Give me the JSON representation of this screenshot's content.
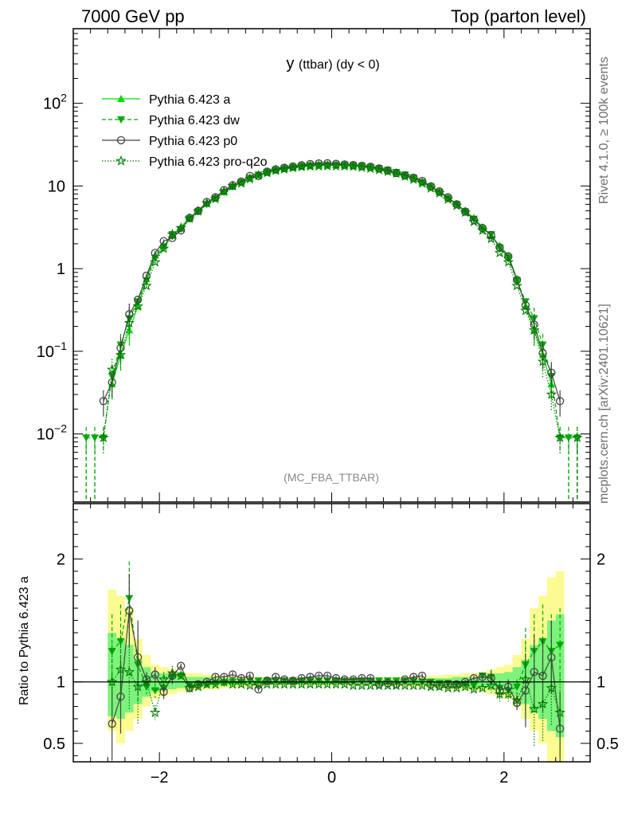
{
  "header": {
    "left": "7000 GeV pp",
    "right": "Top (parton level)"
  },
  "side": {
    "rivet": "Rivet 4.1.0, ≥ 100k events",
    "mcplots": "mcplots.cern.ch [arXiv:2401.10621]"
  },
  "colors": {
    "a": "#00e000",
    "dw": "#00aa00",
    "p0": "#444444",
    "pro": "#007a00",
    "band_yellow": "#fbfb91",
    "band_green": "#7df27d",
    "muted_text": "#888888"
  },
  "chart_data": [
    {
      "id": "main",
      "type": "line",
      "yscale": "log",
      "title": "y",
      "title_sub": "(ttbar) (dy < 0)",
      "watermark": "(MC_FBA_TTBAR)",
      "xlim": [
        -3,
        3
      ],
      "ylim": [
        0.0015,
        800
      ],
      "x_ticks": [
        -2,
        0,
        2
      ],
      "y_ticks": [
        {
          "value": 0.01,
          "base": "10",
          "exp": "−2"
        },
        {
          "value": 0.1,
          "base": "10",
          "exp": "−1"
        },
        {
          "value": 1,
          "label": "1"
        },
        {
          "value": 10,
          "label": "10"
        },
        {
          "value": 100,
          "base": "10",
          "exp": "2"
        }
      ],
      "x": [
        -2.85,
        -2.75,
        -2.65,
        -2.55,
        -2.45,
        -2.35,
        -2.25,
        -2.15,
        -2.05,
        -1.95,
        -1.85,
        -1.75,
        -1.65,
        -1.55,
        -1.45,
        -1.35,
        -1.25,
        -1.15,
        -1.05,
        -0.95,
        -0.85,
        -0.75,
        -0.65,
        -0.55,
        -0.45,
        -0.35,
        -0.25,
        -0.15,
        -0.05,
        0.05,
        0.15,
        0.25,
        0.35,
        0.45,
        0.55,
        0.65,
        0.75,
        0.85,
        0.95,
        1.05,
        1.15,
        1.25,
        1.35,
        1.45,
        1.55,
        1.65,
        1.75,
        1.85,
        1.95,
        2.05,
        2.15,
        2.25,
        2.35,
        2.45,
        2.55,
        2.65,
        2.75,
        2.85
      ],
      "series": [
        {
          "name": "Pythia 6.423 a",
          "key": "a",
          "style": "solid",
          "marker": "triangle-up",
          "values": [
            null,
            null,
            null,
            0.04,
            0.09,
            0.18,
            0.35,
            0.75,
            1.45,
            1.9,
            2.5,
            3.2,
            4.1,
            5.0,
            6.1,
            7.2,
            8.5,
            9.8,
            11.1,
            12.4,
            13.6,
            14.6,
            15.5,
            16.2,
            16.8,
            17.3,
            17.6,
            17.8,
            17.9,
            17.9,
            17.8,
            17.6,
            17.3,
            16.8,
            16.2,
            15.5,
            14.6,
            13.6,
            12.4,
            11.1,
            9.8,
            8.5,
            7.2,
            6.1,
            5.0,
            4.1,
            3.2,
            2.5,
            1.9,
            1.45,
            0.75,
            0.35,
            0.18,
            0.09,
            0.04,
            null,
            null,
            null
          ]
        },
        {
          "name": "Pythia 6.423 dw",
          "key": "dw",
          "style": "dashed",
          "marker": "triangle-down",
          "values": [
            0.009,
            0.009,
            0.009,
            0.05,
            0.12,
            0.25,
            0.4,
            0.72,
            1.35,
            1.8,
            2.6,
            3.0,
            4.0,
            4.9,
            6.0,
            7.1,
            8.4,
            9.8,
            11.1,
            12.5,
            13.7,
            14.7,
            15.6,
            16.3,
            16.9,
            17.4,
            17.7,
            17.9,
            18.0,
            18.0,
            17.9,
            17.7,
            17.4,
            16.9,
            16.3,
            15.6,
            14.7,
            13.7,
            12.5,
            11.1,
            9.8,
            8.4,
            7.1,
            6.0,
            4.9,
            4.0,
            3.0,
            2.6,
            1.8,
            1.35,
            0.72,
            0.4,
            0.25,
            0.12,
            0.05,
            0.009,
            0.009,
            0.009
          ]
        },
        {
          "name": "Pythia 6.423 p0",
          "key": "p0",
          "style": "solid",
          "marker": "circle-open",
          "values": [
            null,
            null,
            0.025,
            0.042,
            0.11,
            0.28,
            0.42,
            0.82,
            1.55,
            2.15,
            2.35,
            2.9,
            4.1,
            5.0,
            6.4,
            7.3,
            8.9,
            10.2,
            11.3,
            13.2,
            13.2,
            14.9,
            15.9,
            16.6,
            17.2,
            17.8,
            18.4,
            18.7,
            18.8,
            18.5,
            18.2,
            17.9,
            17.5,
            17.1,
            16.3,
            15.4,
            14.3,
            13.4,
            12.6,
            11.5,
            9.9,
            8.6,
            7.3,
            6.0,
            4.9,
            3.9,
            3.1,
            2.55,
            1.8,
            1.4,
            0.73,
            0.36,
            0.21,
            0.095,
            0.055,
            0.025,
            null,
            null
          ]
        },
        {
          "name": "Pythia 6.423 pro-q2o",
          "key": "pro",
          "style": "dotted",
          "marker": "star-open",
          "values": [
            null,
            null,
            0.009,
            0.06,
            0.09,
            0.22,
            0.35,
            0.62,
            1.2,
            1.75,
            2.6,
            3.1,
            4.05,
            4.95,
            6.2,
            7.0,
            8.6,
            10.0,
            10.8,
            12.2,
            13.4,
            14.4,
            15.4,
            16.0,
            16.6,
            17.0,
            17.3,
            17.4,
            17.5,
            17.4,
            17.4,
            17.2,
            16.8,
            16.3,
            15.7,
            15.0,
            14.2,
            13.1,
            12.0,
            10.8,
            9.4,
            8.2,
            6.9,
            5.8,
            4.8,
            3.7,
            2.9,
            2.3,
            1.55,
            1.2,
            0.62,
            0.31,
            0.18,
            0.075,
            0.03,
            0.009,
            null,
            0.009
          ]
        }
      ],
      "legend_position": "top-left"
    },
    {
      "id": "ratio",
      "type": "line",
      "ylabel": "Ratio to Pythia 6.423 a",
      "xlim": [
        -3,
        3
      ],
      "ylim": [
        0.35,
        2.45
      ],
      "x_ticks": [
        -2,
        0,
        2
      ],
      "y_ticks": [
        {
          "value": 0.5,
          "label": "0.5"
        },
        {
          "value": 1,
          "label": "1"
        },
        {
          "value": 2,
          "label": "2"
        }
      ],
      "reference": 1,
      "x": [
        -2.55,
        -2.45,
        -2.35,
        -2.25,
        -2.15,
        -2.05,
        -1.95,
        -1.85,
        -1.75,
        -1.65,
        -1.55,
        -1.45,
        -1.35,
        -1.25,
        -1.15,
        -1.05,
        -0.95,
        -0.85,
        -0.75,
        -0.65,
        -0.55,
        -0.45,
        -0.35,
        -0.25,
        -0.15,
        -0.05,
        0.05,
        0.15,
        0.25,
        0.35,
        0.45,
        0.55,
        0.65,
        0.75,
        0.85,
        0.95,
        1.05,
        1.15,
        1.25,
        1.35,
        1.45,
        1.55,
        1.65,
        1.75,
        1.85,
        1.95,
        2.05,
        2.15,
        2.25,
        2.35,
        2.45,
        2.55,
        2.65
      ],
      "bands": {
        "yellow": [
          0.6,
          0.5,
          0.6,
          0.7,
          0.8,
          0.86,
          0.88,
          0.9,
          0.92,
          0.93,
          0.93,
          0.94,
          0.94,
          0.95,
          0.95,
          0.96,
          0.96,
          0.96,
          0.97,
          0.97,
          0.97,
          0.97,
          0.97,
          0.97,
          0.97,
          0.97,
          0.97,
          0.97,
          0.97,
          0.97,
          0.97,
          0.97,
          0.97,
          0.97,
          0.96,
          0.96,
          0.96,
          0.95,
          0.95,
          0.94,
          0.94,
          0.93,
          0.93,
          0.92,
          0.9,
          0.88,
          0.86,
          0.8,
          0.7,
          0.6,
          0.5,
          0.35,
          0.3
        ],
        "yellow_hi": [
          1.75,
          1.7,
          1.6,
          1.35,
          1.22,
          1.14,
          1.12,
          1.1,
          1.08,
          1.07,
          1.07,
          1.06,
          1.06,
          1.05,
          1.05,
          1.04,
          1.04,
          1.04,
          1.03,
          1.03,
          1.03,
          1.03,
          1.03,
          1.03,
          1.03,
          1.03,
          1.03,
          1.03,
          1.03,
          1.03,
          1.03,
          1.03,
          1.03,
          1.03,
          1.04,
          1.04,
          1.04,
          1.05,
          1.05,
          1.06,
          1.06,
          1.07,
          1.07,
          1.08,
          1.1,
          1.12,
          1.14,
          1.22,
          1.35,
          1.6,
          1.7,
          1.85,
          1.9
        ],
        "green_lo": [
          0.72,
          0.7,
          0.75,
          0.82,
          0.88,
          0.92,
          0.93,
          0.94,
          0.95,
          0.96,
          0.96,
          0.96,
          0.97,
          0.97,
          0.97,
          0.98,
          0.98,
          0.98,
          0.98,
          0.98,
          0.98,
          0.98,
          0.98,
          0.98,
          0.98,
          0.98,
          0.98,
          0.98,
          0.98,
          0.98,
          0.98,
          0.98,
          0.98,
          0.98,
          0.98,
          0.98,
          0.98,
          0.97,
          0.97,
          0.97,
          0.96,
          0.96,
          0.96,
          0.95,
          0.94,
          0.93,
          0.92,
          0.88,
          0.82,
          0.75,
          0.7,
          0.6,
          0.55
        ],
        "green_hi": [
          1.4,
          1.35,
          1.3,
          1.18,
          1.12,
          1.08,
          1.07,
          1.06,
          1.05,
          1.04,
          1.04,
          1.04,
          1.03,
          1.03,
          1.03,
          1.02,
          1.02,
          1.02,
          1.02,
          1.02,
          1.02,
          1.02,
          1.02,
          1.02,
          1.02,
          1.02,
          1.02,
          1.02,
          1.02,
          1.02,
          1.02,
          1.02,
          1.02,
          1.02,
          1.02,
          1.02,
          1.02,
          1.03,
          1.03,
          1.03,
          1.04,
          1.04,
          1.04,
          1.05,
          1.06,
          1.07,
          1.08,
          1.12,
          1.18,
          1.3,
          1.35,
          1.5,
          1.55
        ]
      },
      "series": [
        {
          "name": "Pythia 6.423 dw",
          "key": "dw",
          "style": "dashed",
          "marker": "triangle-down",
          "values": [
            1.25,
            1.33,
            1.68,
            1.14,
            0.96,
            0.93,
            0.95,
            1.04,
            1.05,
            0.97,
            0.98,
            0.98,
            0.99,
            0.99,
            1.0,
            1.0,
            1.01,
            1.01,
            1.01,
            1.01,
            1.01,
            1.01,
            1.01,
            1.01,
            1.01,
            1.01,
            1.01,
            1.01,
            1.01,
            1.01,
            1.01,
            1.01,
            1.01,
            1.01,
            1.01,
            1.01,
            1.0,
            1.0,
            0.99,
            0.99,
            0.98,
            0.98,
            0.97,
            1.05,
            1.04,
            0.95,
            0.93,
            0.96,
            1.14,
            1.25,
            1.33,
            1.25,
            1.3
          ]
        },
        {
          "name": "Pythia 6.423 p0",
          "key": "p0",
          "style": "solid",
          "marker": "circle-open",
          "values": [
            0.66,
            0.88,
            1.58,
            1.2,
            1.02,
            1.06,
            0.92,
            1.05,
            1.13,
            0.95,
            0.98,
            1.0,
            1.04,
            1.04,
            1.06,
            1.03,
            1.05,
            0.94,
            1.01,
            1.04,
            1.02,
            1.01,
            1.03,
            1.04,
            1.05,
            1.05,
            1.03,
            1.02,
            1.02,
            1.03,
            1.03,
            0.98,
            0.99,
            0.98,
            1.02,
            1.04,
            1.05,
            0.98,
            0.97,
            0.98,
            0.98,
            1.0,
            1.03,
            1.04,
            1.03,
            0.93,
            0.96,
            0.83,
            0.93,
            1.08,
            1.05,
            1.2,
            0.62
          ]
        },
        {
          "name": "Pythia 6.423 pro-q2o",
          "key": "pro",
          "style": "dotted",
          "marker": "star-open",
          "values": [
            1.0,
            1.1,
            1.08,
            0.96,
            1.0,
            0.75,
            1.02,
            1.07,
            1.05,
            0.95,
            0.96,
            0.98,
            0.98,
            1.0,
            0.98,
            0.98,
            0.97,
            0.98,
            0.98,
            0.98,
            0.98,
            0.98,
            0.98,
            0.98,
            0.98,
            0.98,
            0.98,
            0.98,
            0.97,
            0.97,
            0.97,
            0.97,
            0.97,
            0.97,
            0.97,
            0.97,
            0.97,
            0.96,
            0.96,
            0.95,
            0.95,
            0.96,
            0.94,
            0.95,
            0.97,
            0.9,
            0.9,
            0.85,
            1.02,
            0.78,
            0.82,
            0.95,
            0.75
          ]
        }
      ]
    }
  ]
}
